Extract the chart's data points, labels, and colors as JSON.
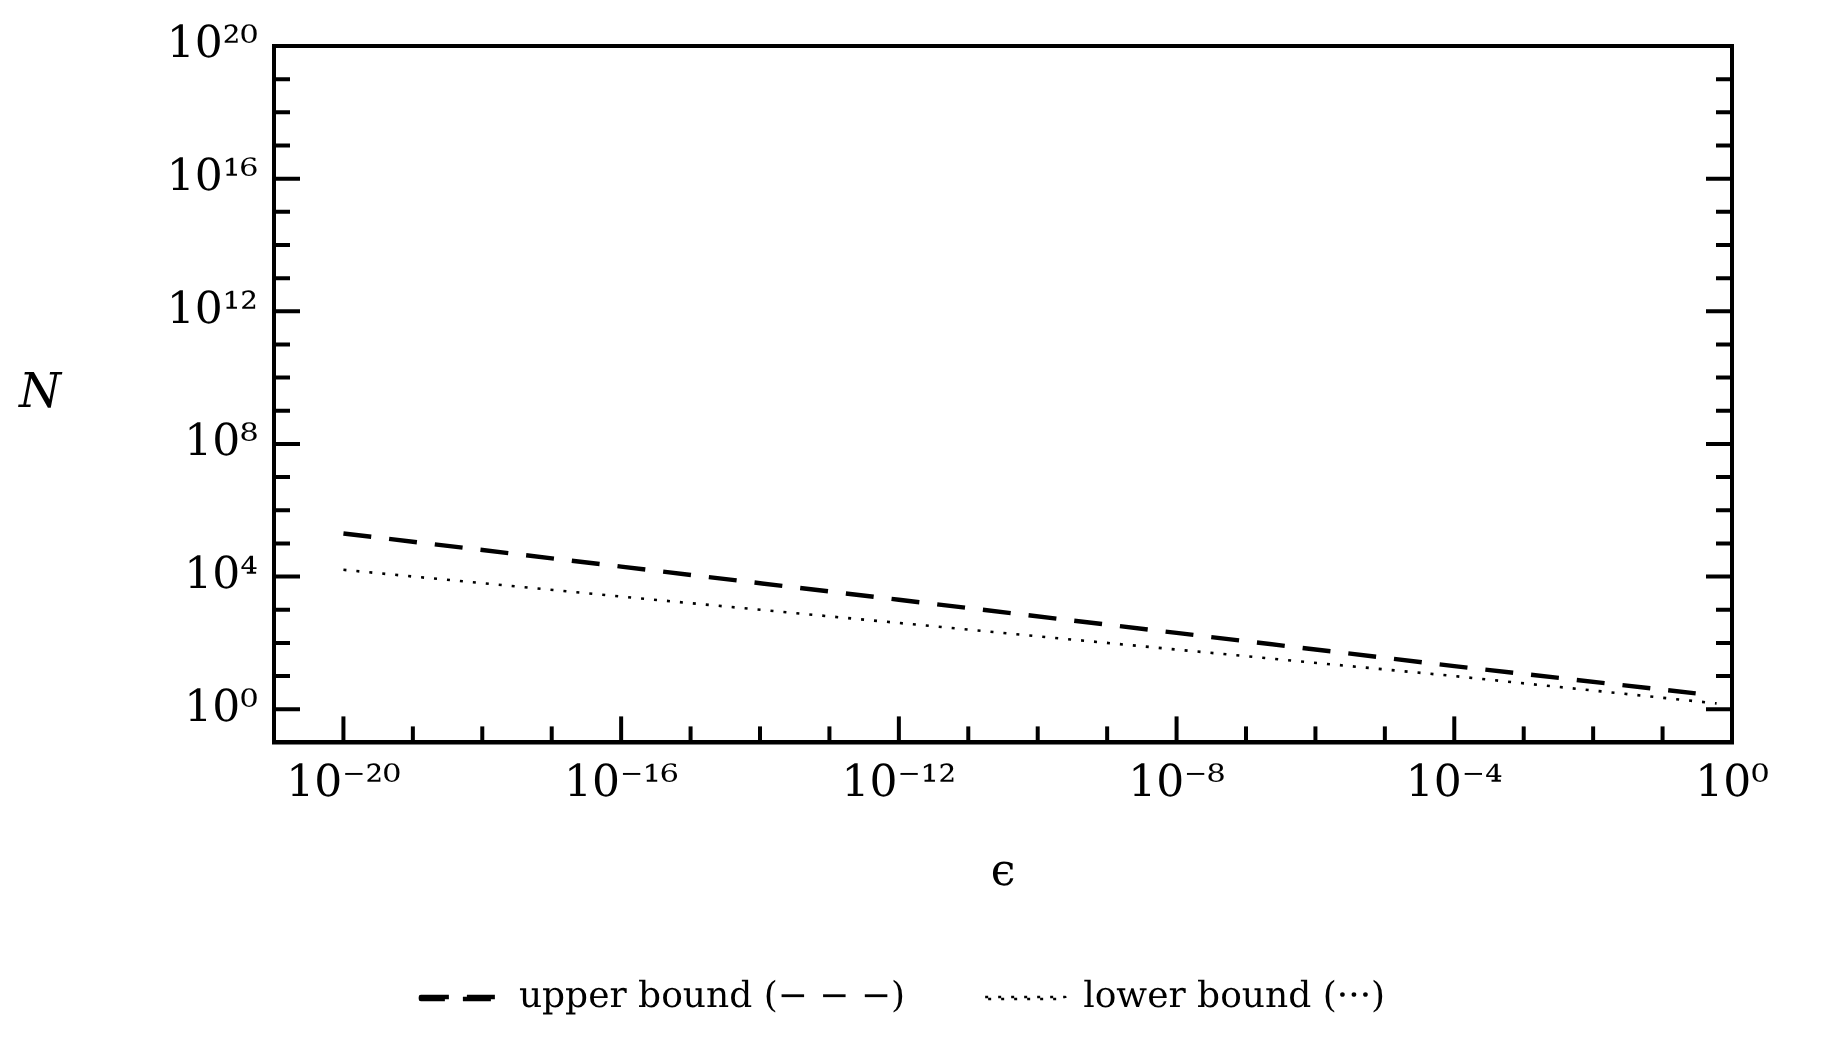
{
  "chart_data": {
    "type": "line",
    "xlabel": "ϵ",
    "ylabel": "N",
    "log": "xy",
    "grid": false,
    "legend": "bottom",
    "marker": "none",
    "xlim": [
      1e-21,
      1
    ],
    "ylim": [
      0.1,
      1e+20
    ],
    "xticks": [
      {
        "value": 1e-20,
        "label": "10⁻²⁰"
      },
      {
        "value": 1e-19,
        "label": null
      },
      {
        "value": 1e-18,
        "label": null
      },
      {
        "value": 1e-17,
        "label": null
      },
      {
        "value": 1e-16,
        "label": "10⁻¹⁶"
      },
      {
        "value": 1e-15,
        "label": null
      },
      {
        "value": 1e-14,
        "label": null
      },
      {
        "value": 1e-13,
        "label": null
      },
      {
        "value": 1e-12,
        "label": "10⁻¹²"
      },
      {
        "value": 1e-11,
        "label": null
      },
      {
        "value": 1e-10,
        "label": null
      },
      {
        "value": 1e-09,
        "label": null
      },
      {
        "value": 1e-08,
        "label": "10⁻⁸"
      },
      {
        "value": 1e-07,
        "label": null
      },
      {
        "value": 1e-06,
        "label": null
      },
      {
        "value": 1e-05,
        "label": null
      },
      {
        "value": 0.0001,
        "label": "10⁻⁴"
      },
      {
        "value": 0.001,
        "label": null
      },
      {
        "value": 0.01,
        "label": null
      },
      {
        "value": 0.1,
        "label": null
      },
      {
        "value": 1,
        "label": "10⁰"
      }
    ],
    "yticks": [
      {
        "value": 1,
        "label": "10⁰"
      },
      {
        "value": 10,
        "label": null
      },
      {
        "value": 100,
        "label": null
      },
      {
        "value": 1000,
        "label": null
      },
      {
        "value": 10000.0,
        "label": "10⁴"
      },
      {
        "value": 100000.0,
        "label": null
      },
      {
        "value": 1000000.0,
        "label": null
      },
      {
        "value": 10000000.0,
        "label": null
      },
      {
        "value": 100000000.0,
        "label": "10⁸"
      },
      {
        "value": 1000000000.0,
        "label": null
      },
      {
        "value": 10000000000.0,
        "label": null
      },
      {
        "value": 100000000000.0,
        "label": null
      },
      {
        "value": 1000000000000.0,
        "label": "10¹²"
      },
      {
        "value": 10000000000000.0,
        "label": null
      },
      {
        "value": 100000000000000.0,
        "label": null
      },
      {
        "value": 1000000000000000.0,
        "label": null
      },
      {
        "value": 1e+16,
        "label": "10¹⁶"
      },
      {
        "value": 1e+17,
        "label": null
      },
      {
        "value": 1e+18,
        "label": null
      },
      {
        "value": 1e+19,
        "label": null
      },
      {
        "value": 1e+20,
        "label": "10²⁰"
      }
    ],
    "series": [
      {
        "name": "upper bound (− − −)",
        "color": "#000000",
        "line_style": "dashed",
        "x": [
          1e-20,
          1e-16,
          1e-12,
          1e-08,
          0.0001,
          0.3
        ],
        "values": [
          200000,
          20000,
          2000,
          200,
          20,
          3
        ]
      },
      {
        "name": "lower bound (···)",
        "color": "#000000",
        "line_style": "dotted",
        "x": [
          1e-20,
          1e-16,
          1e-12,
          1e-08,
          0.0001,
          0.6
        ],
        "values": [
          16000,
          2500,
          400,
          63,
          10,
          1.5
        ]
      }
    ]
  }
}
